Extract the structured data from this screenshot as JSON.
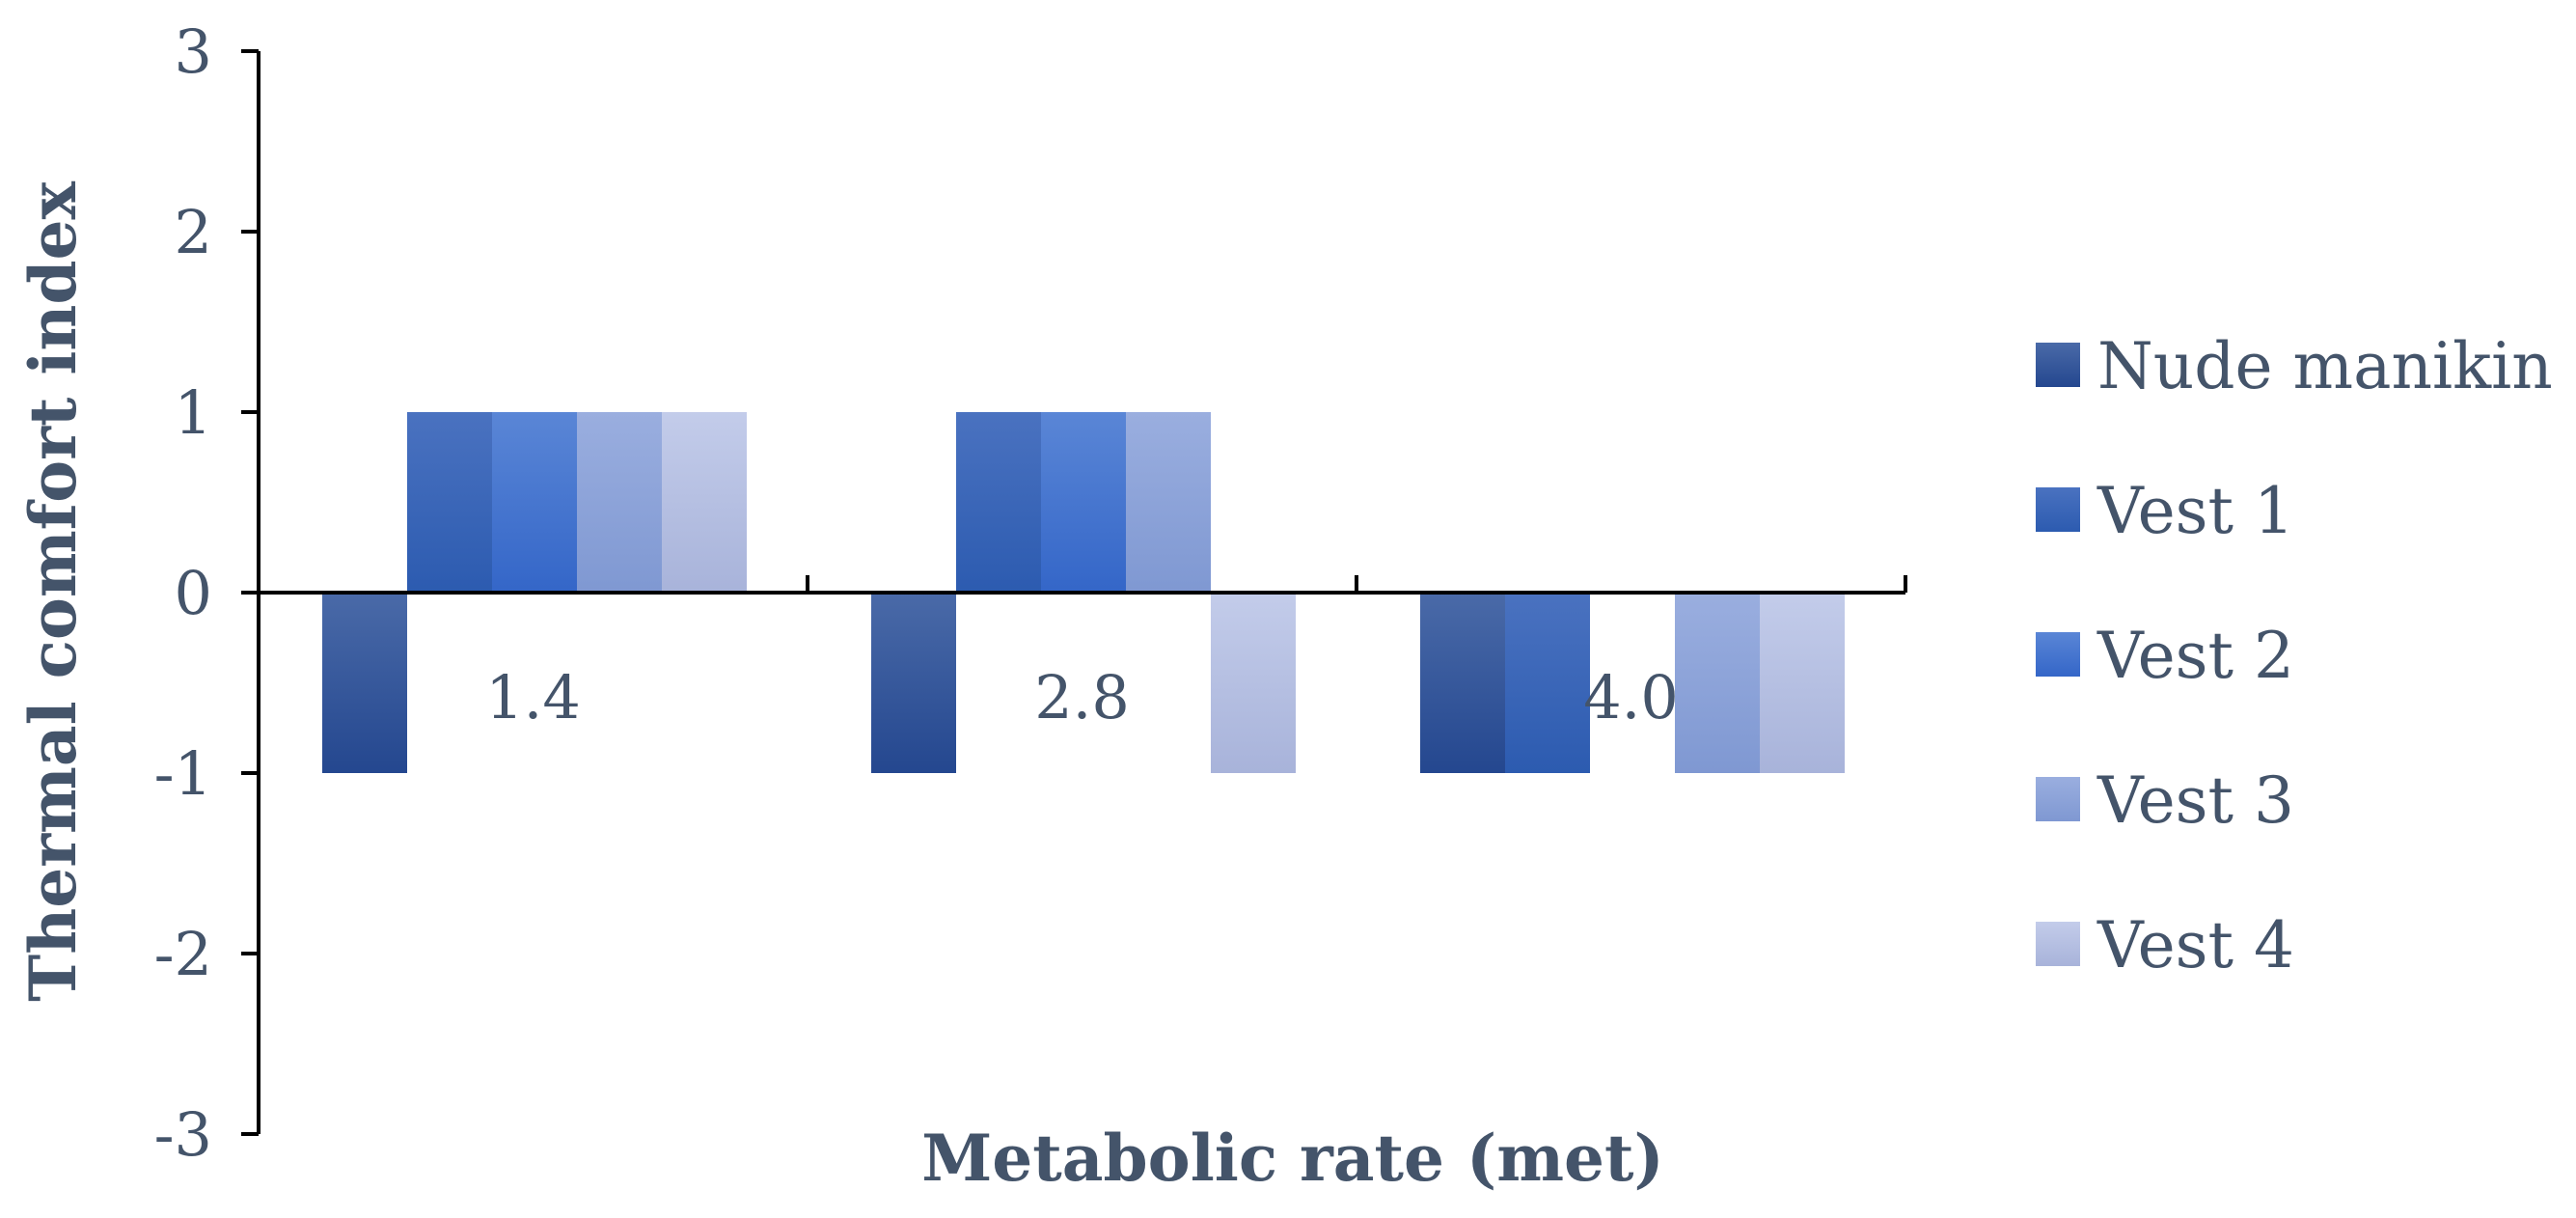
{
  "chart_data": {
    "type": "bar",
    "title": "",
    "xlabel": "Metabolic rate (met)",
    "ylabel": "Thermal comfort index",
    "categories": [
      "1.4",
      "2.8",
      "4.0"
    ],
    "series": [
      {
        "name": "Nude manikin",
        "values": [
          -1,
          -1,
          -1
        ],
        "color_light": "#4a6aa8",
        "color_dark": "#24478f"
      },
      {
        "name": "Vest 1",
        "values": [
          1,
          1,
          -1
        ],
        "color_light": "#4a72c0",
        "color_dark": "#2c5bb0"
      },
      {
        "name": "Vest 2",
        "values": [
          1,
          1,
          0
        ],
        "color_light": "#5a86d6",
        "color_dark": "#3466c8"
      },
      {
        "name": "Vest 3",
        "values": [
          1,
          1,
          -1
        ],
        "color_light": "#9aaedf",
        "color_dark": "#7f98d2"
      },
      {
        "name": "Vest 4",
        "values": [
          1,
          -1,
          -1
        ],
        "color_light": "#c3ccea",
        "color_dark": "#a8b3da"
      }
    ],
    "ylim": [
      -3,
      3
    ],
    "yticks": [
      "3",
      "2",
      "1",
      "0",
      "-1",
      "-2",
      "-3"
    ],
    "legend_position": "right",
    "grid": false,
    "axis_color": "#000000",
    "text_color": "#44546a"
  }
}
